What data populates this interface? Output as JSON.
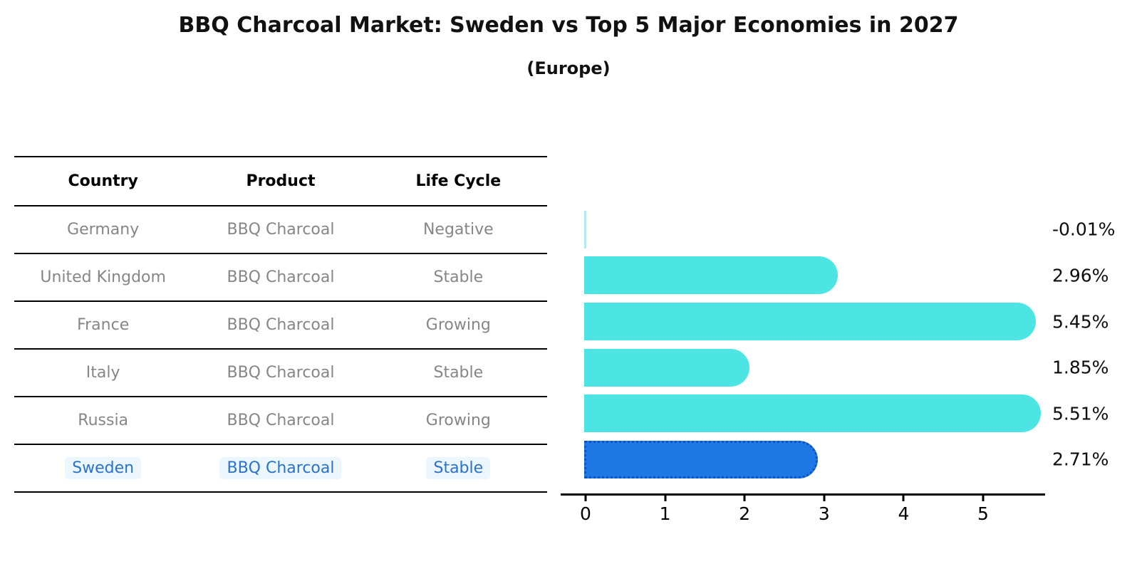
{
  "title": "BBQ Charcoal Market: Sweden vs Top 5 Major Economies in 2027",
  "subtitle": "(Europe)",
  "table": {
    "headers": [
      "Country",
      "Product",
      "Life Cycle"
    ],
    "rows": [
      {
        "country": "Germany",
        "product": "BBQ Charcoal",
        "life_cycle": "Negative",
        "highlighted": false
      },
      {
        "country": "United Kingdom",
        "product": "BBQ Charcoal",
        "life_cycle": "Stable",
        "highlighted": false
      },
      {
        "country": "France",
        "product": "BBQ Charcoal",
        "life_cycle": "Growing",
        "highlighted": false
      },
      {
        "country": "Italy",
        "product": "BBQ Charcoal",
        "life_cycle": "Stable",
        "highlighted": false
      },
      {
        "country": "Russia",
        "product": "BBQ Charcoal",
        "life_cycle": "Growing",
        "highlighted": false
      },
      {
        "country": "Sweden",
        "product": "BBQ Charcoal",
        "life_cycle": "Stable",
        "highlighted": true
      }
    ]
  },
  "chart_data": {
    "type": "bar",
    "orientation": "horizontal",
    "categories": [
      "Germany",
      "United Kingdom",
      "France",
      "Italy",
      "Russia",
      "Sweden"
    ],
    "values": [
      -0.01,
      2.96,
      5.45,
      1.85,
      5.51,
      2.71
    ],
    "value_labels": [
      "-0.01%",
      "2.96%",
      "5.45%",
      "1.85%",
      "5.51%",
      "2.71%"
    ],
    "highlight_index": 5,
    "xticks": [
      0,
      1,
      2,
      3,
      4,
      5
    ],
    "xlim": [
      -0.3,
      5.8
    ],
    "grid": false,
    "legend": "none",
    "colors": {
      "bar_default": "#4DE4E4",
      "bar_highlight": "#1E78E6",
      "bar_highlight_border": "#0f52c0",
      "bar_near_zero": "#b4eaeb",
      "table_text": "#868686",
      "table_highlight_text": "#2b72c8",
      "axis": "#000000"
    }
  }
}
